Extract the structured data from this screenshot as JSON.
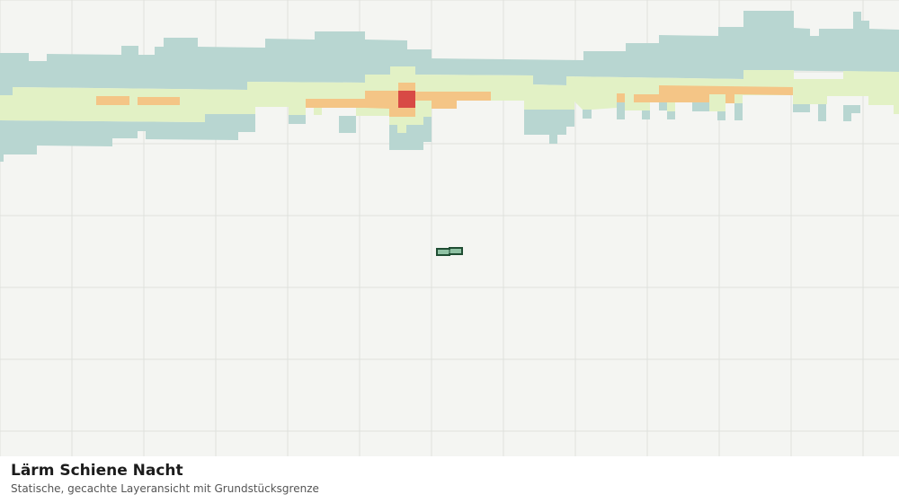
{
  "map": {
    "layer_title": "Lärm Schiene Nacht",
    "layer_subtitle": "Statische, gecachte Layeransicht mit Grundstücksgrenze",
    "colors": {
      "background": "#f4f5f2",
      "grid": "#dfe1dc",
      "class_low": "#b8d6d1",
      "class_mid": "#e2f1c5",
      "class_high": "#f4c586",
      "class_max": "#d84a45",
      "parcel_fill": "#8fc2a4",
      "parcel_stroke": "#1f4d33"
    }
  }
}
